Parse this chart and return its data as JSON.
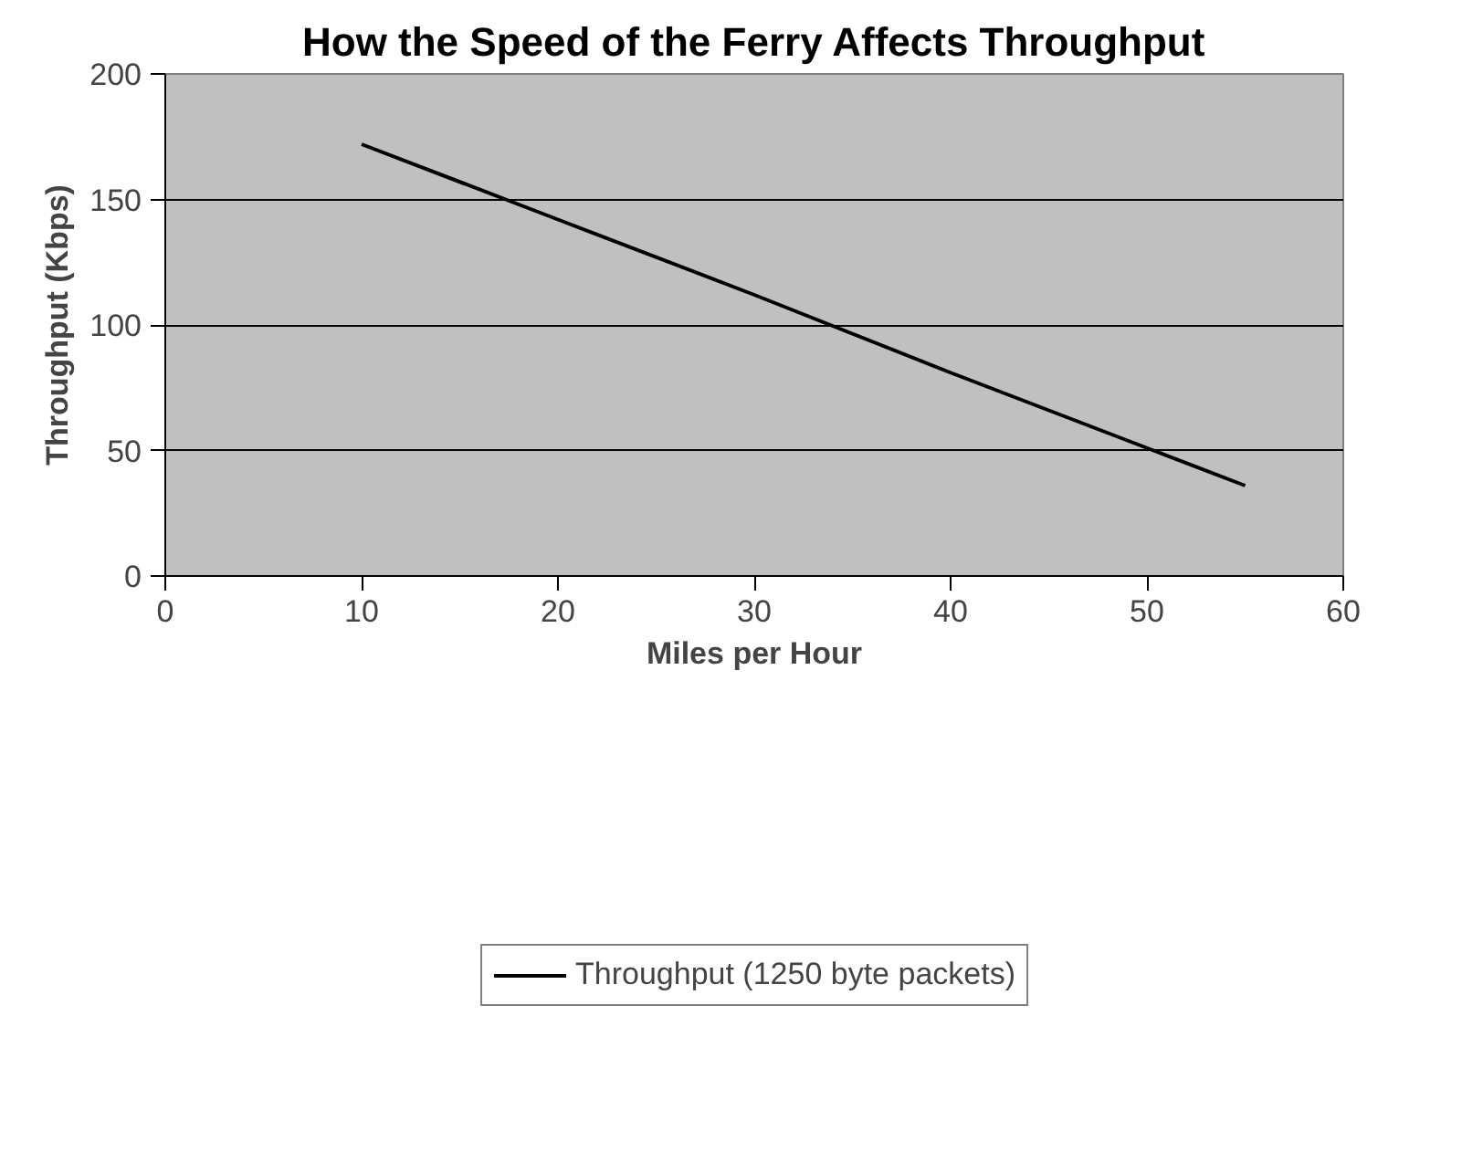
{
  "chart_data": {
    "type": "line",
    "title": "How the Speed of the Ferry Affects Throughput",
    "xlabel": "Miles per Hour",
    "ylabel": "Throughput (Kbps)",
    "x": [
      10,
      20,
      30,
      40,
      50,
      55
    ],
    "series": [
      {
        "name": "Throughput (1250 byte packets)",
        "color": "#000000",
        "values": [
          172,
          142,
          112,
          81,
          51,
          36
        ]
      }
    ],
    "xlim": [
      0,
      60
    ],
    "xticks": [
      0,
      10,
      20,
      30,
      40,
      50,
      60
    ],
    "ylim": [
      0,
      200
    ],
    "yticks": [
      0,
      50,
      100,
      150,
      200
    ],
    "grid": "y",
    "legend": "bottom",
    "marker": "none",
    "line_style": "solid"
  }
}
